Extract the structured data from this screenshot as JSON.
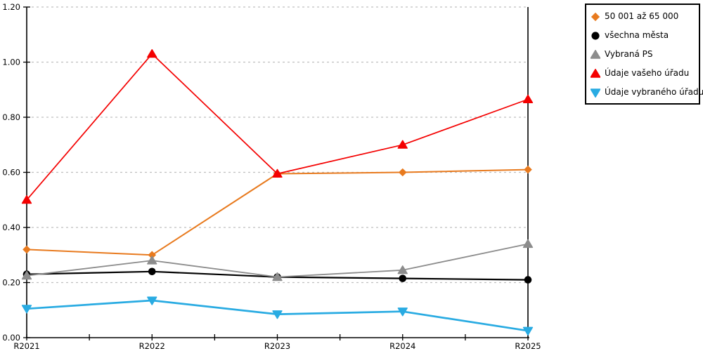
{
  "chart_data": {
    "type": "line",
    "title": "",
    "xlabel": "",
    "ylabel": "",
    "categories": [
      "R2021",
      "R2022",
      "R2023",
      "R2024",
      "R2025"
    ],
    "series": [
      {
        "name": "50 001 až 65 000",
        "color": "#E87A1E",
        "marker": "diamond",
        "values": [
          0.32,
          0.3,
          0.595,
          0.6,
          0.61
        ]
      },
      {
        "name": "všechna města",
        "color": "#000000",
        "marker": "circle",
        "values": [
          0.23,
          0.24,
          0.22,
          0.215,
          0.21
        ]
      },
      {
        "name": "Vybraná PS",
        "color": "#8C8C8C",
        "marker": "triangle-up",
        "values": [
          0.225,
          0.28,
          0.22,
          0.245,
          0.34
        ]
      },
      {
        "name": "Údaje vašeho úřadu",
        "color": "#F40000",
        "marker": "triangle-up",
        "values": [
          0.5,
          1.03,
          0.595,
          0.7,
          0.865
        ]
      },
      {
        "name": "Údaje vybraného úřadu",
        "color": "#29ABE2",
        "marker": "triangle-down",
        "values": [
          0.105,
          0.135,
          0.085,
          0.095,
          0.025
        ]
      }
    ],
    "ylim": [
      0,
      1.2
    ],
    "y_tick_labels": [
      "0.00",
      "0.20",
      "0.40",
      "0.60",
      "0.80",
      "1.00",
      "1.20"
    ],
    "grid": "horizontal-dashed",
    "gridline_color": "#BFBFBF",
    "axis_color": "#000000",
    "legend_position": "top-right"
  }
}
